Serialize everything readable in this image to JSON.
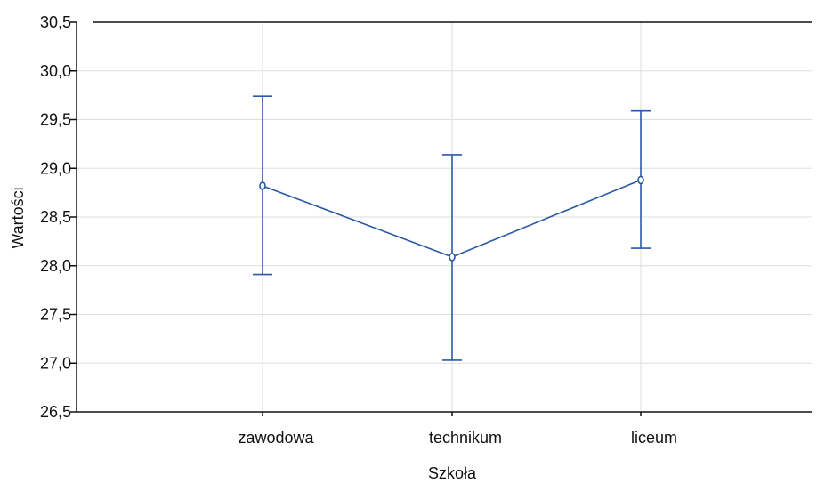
{
  "chart_data": {
    "type": "line",
    "xlabel": "Szkoła",
    "ylabel": "Wartości",
    "categories": [
      "zawodowa",
      "technikum",
      "liceum"
    ],
    "series": [
      {
        "values": [
          28.82,
          28.09,
          28.88
        ],
        "error_low": [
          27.91,
          27.03,
          28.18
        ],
        "error_high": [
          29.74,
          29.14,
          29.59
        ],
        "color": "#2a5aa6"
      }
    ],
    "ylim": [
      26.5,
      30.5
    ],
    "yticks": [
      26.5,
      27.0,
      27.5,
      28.0,
      28.5,
      29.0,
      29.5,
      30.0,
      30.5
    ],
    "ytick_labels": [
      "26,5",
      "27,0",
      "27,5",
      "28,0",
      "28,5",
      "29,0",
      "29,5",
      "30,0",
      "30,5"
    ],
    "grid": true,
    "colors": {
      "series": "#2a5aa6",
      "grid": "#dedede",
      "axis": "#111111"
    }
  }
}
